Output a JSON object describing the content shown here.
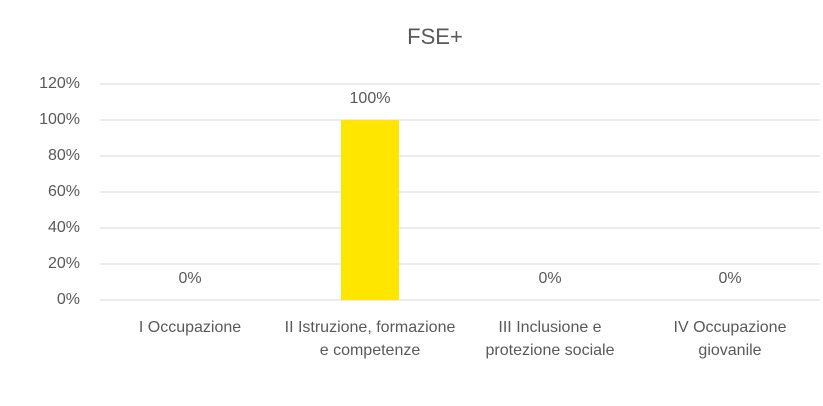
{
  "chart_data": {
    "type": "bar",
    "title": "FSE+",
    "categories": [
      "I Occupazione",
      "II Istruzione, formazione e competenze",
      "III Inclusione e protezione sociale",
      "IV Occupazione giovanile"
    ],
    "values": [
      0,
      100,
      0,
      0
    ],
    "value_labels": [
      "0%",
      "100%",
      "0%",
      "0%"
    ],
    "color": "#ffe600",
    "ylim": [
      0,
      120
    ],
    "yticks": [
      {
        "value": 0,
        "label": "0%"
      },
      {
        "value": 20,
        "label": "20%"
      },
      {
        "value": 40,
        "label": "40%"
      },
      {
        "value": 60,
        "label": "60%"
      },
      {
        "value": 80,
        "label": "80%"
      },
      {
        "value": 100,
        "label": "100%"
      },
      {
        "value": 120,
        "label": "120%"
      }
    ],
    "grid": true
  }
}
